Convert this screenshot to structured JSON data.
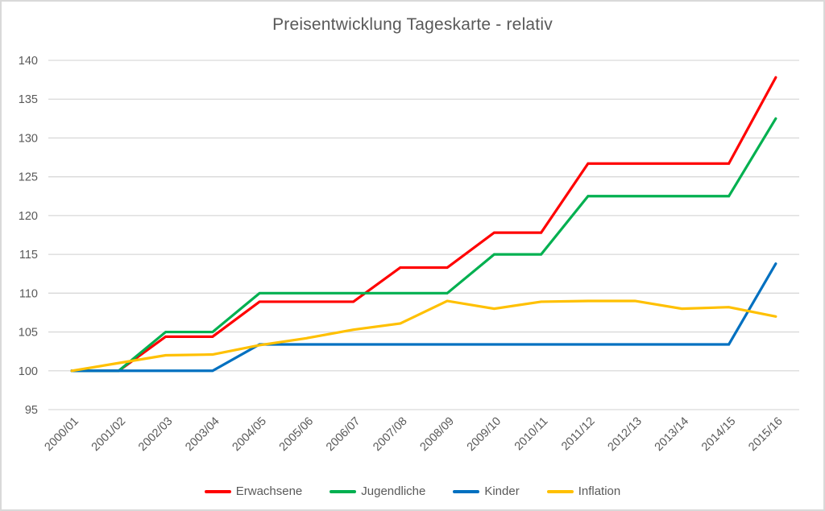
{
  "chart_data": {
    "type": "line",
    "title": "Preisentwicklung Tageskarte - relativ",
    "categories": [
      "2000/01",
      "2001/02",
      "2002/03",
      "2003/04",
      "2004/05",
      "2005/06",
      "2006/07",
      "2007/08",
      "2008/09",
      "2009/10",
      "2010/11",
      "2011/12",
      "2012/13",
      "2013/14",
      "2014/15",
      "2015/16"
    ],
    "series": [
      {
        "name": "Erwachsene",
        "color": "#FF0000",
        "values": [
          100,
          100,
          104.4,
          104.4,
          108.9,
          108.9,
          108.9,
          113.3,
          113.3,
          117.8,
          117.8,
          126.7,
          126.7,
          126.7,
          126.7,
          137.8
        ]
      },
      {
        "name": "Jugendliche",
        "color": "#00B050",
        "values": [
          100,
          100,
          105,
          105,
          110,
          110,
          110,
          110,
          110,
          115,
          115,
          122.5,
          122.5,
          122.5,
          122.5,
          132.5
        ]
      },
      {
        "name": "Kinder",
        "color": "#0070C0",
        "values": [
          100,
          100,
          100,
          100,
          103.4,
          103.4,
          103.4,
          103.4,
          103.4,
          103.4,
          103.4,
          103.4,
          103.4,
          103.4,
          103.4,
          113.8
        ]
      },
      {
        "name": "Inflation",
        "color": "#FFC000",
        "values": [
          100,
          101,
          102,
          102.1,
          103.3,
          104.2,
          105.3,
          106.1,
          109,
          108,
          108.9,
          109,
          109,
          108,
          108.2,
          107
        ]
      }
    ],
    "ylim": [
      95,
      140
    ],
    "ytick_step": 5,
    "ytick_labels": [
      "95",
      "100",
      "105",
      "110",
      "115",
      "120",
      "125",
      "130",
      "135",
      "140"
    ],
    "grid": true,
    "legend_position": "bottom",
    "xlabel": "",
    "ylabel": "",
    "colors": {
      "gridline": "#D9D9D9",
      "axis_label": "#595959",
      "title": "#595959",
      "frame_border": "#D9D9D9",
      "background": "#FFFFFF"
    }
  }
}
